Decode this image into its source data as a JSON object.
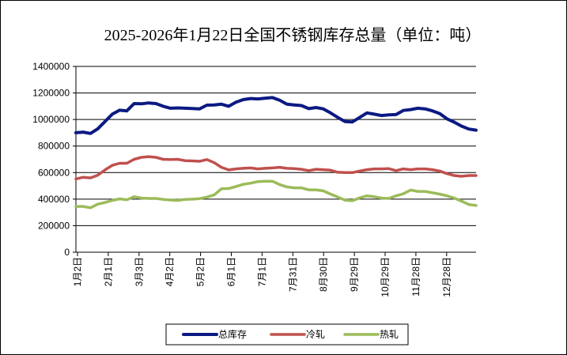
{
  "chart_data": {
    "type": "line",
    "title": "2025-2026年1月22日全国不锈钢库存总量（单位：吨）",
    "xlabel": "",
    "ylabel": "",
    "ylim": [
      0,
      1400000
    ],
    "yticks": [
      0,
      200000,
      400000,
      600000,
      800000,
      1000000,
      1200000,
      1400000
    ],
    "ytick_labels": [
      "0",
      "200000",
      "400000",
      "600000",
      "800000",
      "1000000",
      "1200000",
      "1400000"
    ],
    "xtick_labels": [
      "1月2日",
      "2月1日",
      "3月3日",
      "4月2日",
      "5月2日",
      "6月1日",
      "7月1日",
      "7月31日",
      "8月30日",
      "9月29日",
      "10月29日",
      "11月28日",
      "12月28日"
    ],
    "grid": true,
    "legend_position": "bottom",
    "series": [
      {
        "name": "总库存",
        "color": "#0b1a82",
        "values": [
          900000,
          905000,
          895000,
          930000,
          985000,
          1040000,
          1070000,
          1065000,
          1120000,
          1118000,
          1125000,
          1120000,
          1100000,
          1085000,
          1087000,
          1085000,
          1083000,
          1080000,
          1108000,
          1110000,
          1115000,
          1100000,
          1130000,
          1150000,
          1158000,
          1155000,
          1160000,
          1165000,
          1145000,
          1115000,
          1110000,
          1105000,
          1082000,
          1090000,
          1080000,
          1050000,
          1015000,
          985000,
          982000,
          1015000,
          1050000,
          1040000,
          1030000,
          1035000,
          1037000,
          1068000,
          1075000,
          1085000,
          1080000,
          1065000,
          1045000,
          1005000,
          980000,
          950000,
          928000,
          920000
        ]
      },
      {
        "name": "冷轧",
        "color": "#c0504d",
        "values": [
          552000,
          565000,
          560000,
          580000,
          620000,
          655000,
          670000,
          670000,
          700000,
          715000,
          720000,
          715000,
          700000,
          698000,
          700000,
          690000,
          688000,
          685000,
          698000,
          675000,
          640000,
          620000,
          628000,
          632000,
          635000,
          628000,
          632000,
          635000,
          640000,
          632000,
          630000,
          625000,
          615000,
          625000,
          622000,
          618000,
          602000,
          600000,
          600000,
          612000,
          622000,
          628000,
          628000,
          630000,
          615000,
          628000,
          622000,
          628000,
          628000,
          622000,
          612000,
          592000,
          578000,
          572000,
          578000,
          578000
        ]
      },
      {
        "name": "热轧",
        "color": "#9bbb59",
        "values": [
          345000,
          345000,
          335000,
          362000,
          375000,
          390000,
          402000,
          395000,
          418000,
          408000,
          405000,
          405000,
          398000,
          393000,
          390000,
          398000,
          400000,
          404000,
          415000,
          432000,
          478000,
          480000,
          495000,
          512000,
          520000,
          532000,
          535000,
          535000,
          510000,
          492000,
          485000,
          485000,
          470000,
          470000,
          462000,
          438000,
          415000,
          392000,
          388000,
          410000,
          425000,
          418000,
          408000,
          405000,
          425000,
          440000,
          468000,
          458000,
          458000,
          448000,
          438000,
          425000,
          408000,
          385000,
          360000,
          352000
        ]
      }
    ]
  }
}
